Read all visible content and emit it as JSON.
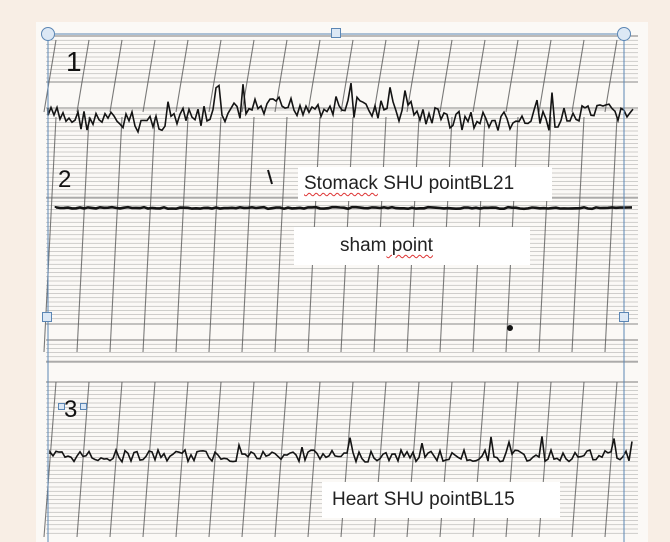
{
  "figure": {
    "channels": [
      {
        "number": "1",
        "label": ""
      },
      {
        "number": "2",
        "label": "Stomack SHU pointBL21"
      },
      {
        "number": "3",
        "label": "Heart SHU pointBL15"
      }
    ],
    "sham_label": "sham point",
    "label_prefixes": {
      "stomach": "Stomack",
      "sham_first": "sham",
      "heart": "Heart"
    },
    "label_suffixes": {
      "stomach": " SHU pointBL21",
      "sham_rest": " point",
      "heart": " SHU pointBL15"
    }
  },
  "colors": {
    "page_background": "#f8eee5",
    "paper": "#fbf9f6",
    "grid": "#5a5a5a",
    "trace": "#141414",
    "selection_border": "#5b86b4",
    "handle_fill": "#dce8f5",
    "spellcheck_underline": "#d33"
  }
}
